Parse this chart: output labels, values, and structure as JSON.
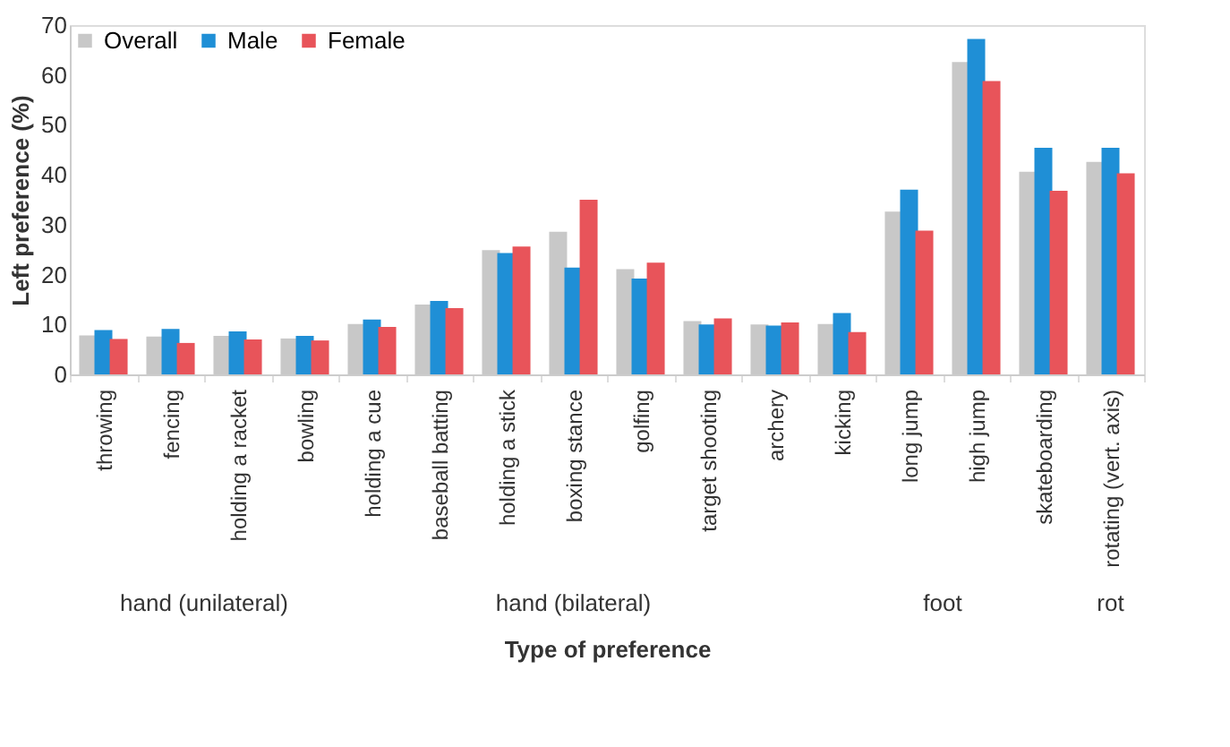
{
  "chart_data": {
    "type": "bar",
    "xlabel": "Type of preference",
    "ylabel": "Left preference (%)",
    "categories": [
      "throwing",
      "fencing",
      "holding a racket",
      "bowling",
      "holding a cue",
      "baseball batting",
      "holding a stick",
      "boxing stance",
      "golfing",
      "target shooting",
      "archery",
      "kicking",
      "long jump",
      "high jump",
      "skateboarding",
      "rotating (vert. axis)"
    ],
    "series": [
      {
        "name": "Overall",
        "color": "#c8c8c8",
        "values": [
          7.8,
          7.6,
          7.7,
          7.2,
          10.1,
          14.0,
          24.9,
          28.6,
          21.1,
          10.7,
          10.0,
          10.1,
          32.6,
          62.6,
          40.6,
          42.6
        ]
      },
      {
        "name": "Male",
        "color": "#1f8fd6",
        "values": [
          8.9,
          9.1,
          8.6,
          7.7,
          11.0,
          14.7,
          24.3,
          21.4,
          19.2,
          10.0,
          9.8,
          12.3,
          37.0,
          67.2,
          45.4,
          45.4
        ]
      },
      {
        "name": "Female",
        "color": "#e8545a",
        "values": [
          7.1,
          6.3,
          7.0,
          6.8,
          9.5,
          13.3,
          25.6,
          35.0,
          22.4,
          11.2,
          10.4,
          8.5,
          28.8,
          58.8,
          36.8,
          40.3
        ]
      }
    ],
    "ylim": [
      0,
      70
    ],
    "yticks": [
      0,
      10,
      20,
      30,
      40,
      50,
      60,
      70
    ],
    "grid": false,
    "legend": "top left",
    "annotations": [
      "hand (unilateral)",
      "hand (bilateral)",
      "foot",
      "rot"
    ]
  }
}
